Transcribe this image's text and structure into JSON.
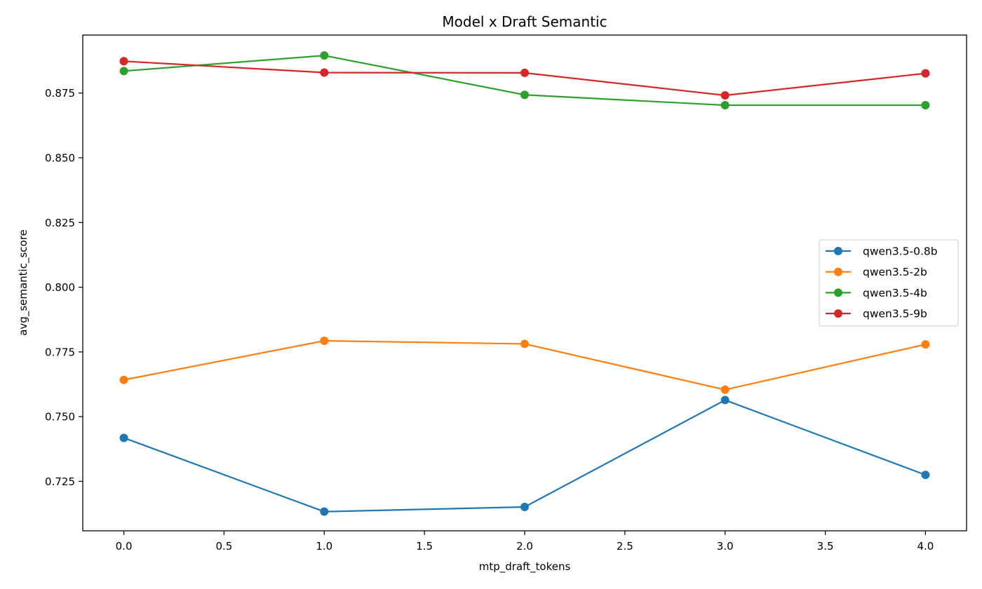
{
  "chart_data": {
    "type": "line",
    "title": "Model x Draft Semantic",
    "xlabel": "mtp_draft_tokens",
    "ylabel": "avg_semantic_score",
    "x": [
      0,
      1,
      2,
      3,
      4
    ],
    "xlim": [
      -0.205,
      4.205
    ],
    "ylim": [
      0.7059,
      0.8974
    ],
    "xticks": [
      0.0,
      0.5,
      1.0,
      1.5,
      2.0,
      2.5,
      3.0,
      3.5,
      4.0
    ],
    "xtick_labels": [
      "0.0",
      "0.5",
      "1.0",
      "1.5",
      "2.0",
      "2.5",
      "3.0",
      "3.5",
      "4.0"
    ],
    "yticks": [
      0.725,
      0.75,
      0.775,
      0.8,
      0.825,
      0.85,
      0.875
    ],
    "ytick_labels": [
      "0.725",
      "0.750",
      "0.775",
      "0.800",
      "0.825",
      "0.850",
      "0.875"
    ],
    "grid": false,
    "legend_position": "center-right",
    "series": [
      {
        "name": "qwen3.5-0.8b",
        "color": "#1f77b4",
        "values": [
          0.7418,
          0.7133,
          0.7151,
          0.7564,
          0.7275
        ]
      },
      {
        "name": "qwen3.5-2b",
        "color": "#ff7f0e",
        "values": [
          0.7642,
          0.7793,
          0.7781,
          0.7604,
          0.7779
        ]
      },
      {
        "name": "qwen3.5-4b",
        "color": "#2ca02c",
        "values": [
          0.8835,
          0.8895,
          0.8743,
          0.8703,
          0.8703
        ]
      },
      {
        "name": "qwen3.5-9b",
        "color": "#d62728",
        "values": [
          0.8873,
          0.8829,
          0.8828,
          0.8741,
          0.8826
        ]
      }
    ]
  }
}
